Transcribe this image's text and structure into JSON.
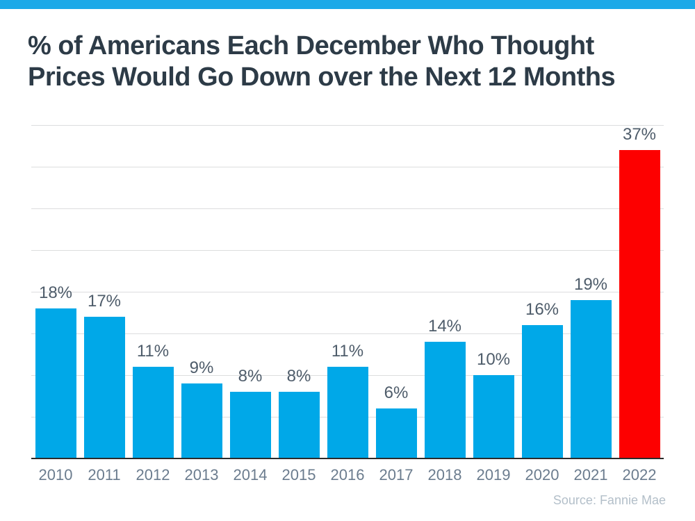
{
  "page": {
    "stripe_color": "#1CA9E8",
    "background": "#FFFFFF"
  },
  "title": {
    "line1": "% of Americans Each December Who Thought",
    "line2": "Prices Would Go Down over the Next 12 Months"
  },
  "chart_data": {
    "type": "bar",
    "title": "% of Americans Each December Who Thought Prices Would Go Down over the Next 12 Months",
    "categories": [
      "2010",
      "2011",
      "2012",
      "2013",
      "2014",
      "2015",
      "2016",
      "2017",
      "2018",
      "2019",
      "2020",
      "2021",
      "2022"
    ],
    "values": [
      18,
      17,
      11,
      9,
      8,
      8,
      11,
      6,
      14,
      10,
      16,
      19,
      37
    ],
    "labels": [
      "18%",
      "17%",
      "11%",
      "9%",
      "8%",
      "8%",
      "11%",
      "6%",
      "14%",
      "10%",
      "16%",
      "19%",
      "37%"
    ],
    "colors": {
      "default": "#00A8E8",
      "highlight": "#FD0000"
    },
    "highlight_category": "2022",
    "xlabel": "",
    "ylabel": "",
    "ylim": [
      0,
      40
    ],
    "gridline_step": 5,
    "grid": true,
    "legend": "none",
    "source": "Source: Fannie Mae"
  }
}
